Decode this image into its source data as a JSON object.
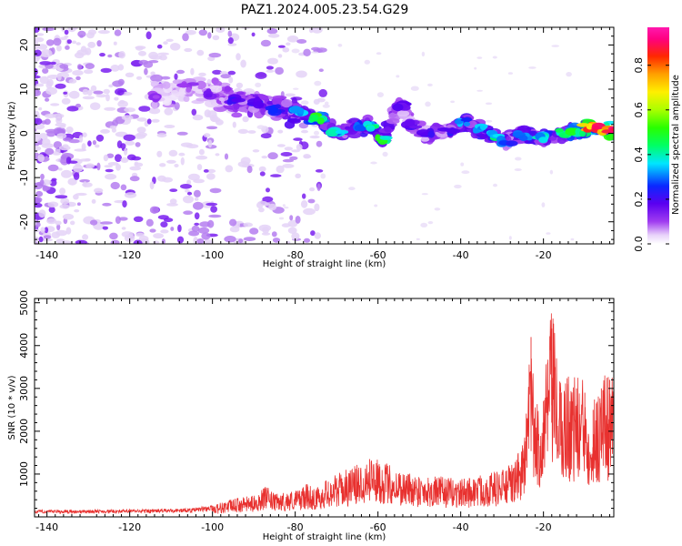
{
  "title": "PAZ1.2024.005.23.54.G29",
  "chart_data": [
    {
      "type": "heatmap",
      "xlabel": "Height of straight line (km)",
      "ylabel": "Frequency (Hz)",
      "xlim": [
        -143,
        -3
      ],
      "ylim": [
        -25,
        24
      ],
      "x_ticks": [
        -140,
        -120,
        -100,
        -80,
        -60,
        -40,
        -20
      ],
      "x_tick_labels": [
        "-140",
        "-120",
        "-100",
        "-80",
        "-60",
        "-40",
        "-20"
      ],
      "y_ticks": [
        -20,
        -10,
        0,
        10,
        20
      ],
      "y_tick_labels": [
        "-20",
        "-10",
        "0",
        "10",
        "20"
      ],
      "colorbar": {
        "label": "Normalized spectral amplitude",
        "range": [
          0,
          0.97
        ],
        "ticks": [
          0.0,
          0.2,
          0.4,
          0.6,
          0.8
        ],
        "tick_labels": [
          "0.0",
          "0.2",
          "0.4",
          "0.6",
          "0.8"
        ],
        "colormap": "gist_ncar-like (white, violet, blue, cyan, green, yellow, orange, red, magenta)"
      },
      "ridge": [
        {
          "x": -114,
          "y": 8.5,
          "a": 0.12
        },
        {
          "x": -106,
          "y": 10.5,
          "a": 0.12
        },
        {
          "x": -100,
          "y": 9.0,
          "a": 0.15
        },
        {
          "x": -95,
          "y": 7.5,
          "a": 0.22
        },
        {
          "x": -90,
          "y": 7.0,
          "a": 0.25
        },
        {
          "x": -85,
          "y": 5.5,
          "a": 0.3
        },
        {
          "x": -80,
          "y": 5.0,
          "a": 0.38
        },
        {
          "x": -75,
          "y": 3.5,
          "a": 0.55
        },
        {
          "x": -70,
          "y": 0.5,
          "a": 0.4
        },
        {
          "x": -65,
          "y": 1.5,
          "a": 0.3
        },
        {
          "x": -62,
          "y": 1.5,
          "a": 0.45
        },
        {
          "x": -59,
          "y": -1.5,
          "a": 0.5
        },
        {
          "x": -55,
          "y": 6.5,
          "a": 0.18
        },
        {
          "x": -52,
          "y": 2.0,
          "a": 0.2
        },
        {
          "x": -48,
          "y": 0.0,
          "a": 0.22
        },
        {
          "x": -43,
          "y": 0.5,
          "a": 0.25
        },
        {
          "x": -40,
          "y": 2.5,
          "a": 0.35
        },
        {
          "x": -36,
          "y": 1.0,
          "a": 0.4
        },
        {
          "x": -32,
          "y": -0.5,
          "a": 0.45
        },
        {
          "x": -29,
          "y": -2.0,
          "a": 0.3
        },
        {
          "x": -25,
          "y": -0.5,
          "a": 0.35
        },
        {
          "x": -20,
          "y": -1.0,
          "a": 0.4
        },
        {
          "x": -15,
          "y": 0.0,
          "a": 0.48
        },
        {
          "x": -12,
          "y": 0.5,
          "a": 0.55
        },
        {
          "x": -9,
          "y": 1.5,
          "a": 0.85
        },
        {
          "x": -6,
          "y": 1.0,
          "a": 0.92
        },
        {
          "x": -3.5,
          "y": 0.5,
          "a": 0.9
        }
      ]
    },
    {
      "type": "line",
      "xlabel": "Height of straight line (km)",
      "ylabel": "SNR (10 * v/v)",
      "xlim": [
        -143,
        -3
      ],
      "ylim": [
        0,
        5100
      ],
      "x_ticks": [
        -140,
        -120,
        -100,
        -80,
        -60,
        -40,
        -20
      ],
      "x_tick_labels": [
        "-140",
        "-120",
        "-100",
        "-80",
        "-60",
        "-40",
        "-20"
      ],
      "y_ticks": [
        1000,
        2000,
        3000,
        4000,
        5000
      ],
      "y_tick_labels": [
        "1000",
        "2000",
        "3000",
        "4000",
        "5000"
      ],
      "series": [
        {
          "color": "#e8312f",
          "x": [
            -143,
            -135,
            -125,
            -115,
            -105,
            -100,
            -95,
            -90,
            -87,
            -85,
            -80,
            -77,
            -75,
            -72,
            -70,
            -65,
            -62,
            -60,
            -58,
            -55,
            -50,
            -45,
            -40,
            -35,
            -30,
            -27,
            -25,
            -24,
            -23,
            -22,
            -20,
            -19,
            -18,
            -16,
            -14,
            -12,
            -10,
            -8,
            -6,
            -4,
            -3
          ],
          "y": [
            150,
            150,
            160,
            170,
            190,
            260,
            380,
            450,
            650,
            480,
            560,
            700,
            600,
            820,
            900,
            1100,
            1350,
            1200,
            1150,
            1000,
            900,
            850,
            800,
            900,
            1000,
            1150,
            1600,
            2300,
            4200,
            2300,
            2700,
            3600,
            4400,
            2900,
            3100,
            3000,
            2900,
            2500,
            3000,
            3200,
            3100
          ]
        }
      ]
    }
  ]
}
